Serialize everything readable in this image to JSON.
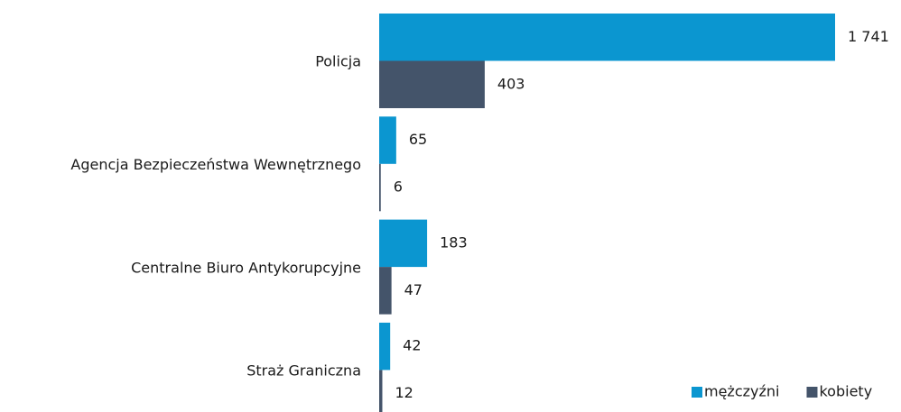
{
  "chart_data": {
    "type": "barh",
    "categories": [
      "Policja",
      "Agencja Bezpieczeństwa Wewnętrznego",
      "Centralne Biuro Antykorupcyjne",
      "Straż Graniczna"
    ],
    "series": [
      {
        "name": "mężczyźni",
        "color": "#0b96d0",
        "values": [
          1741,
          65,
          183,
          42
        ],
        "value_labels": [
          "1 741",
          "65",
          "183",
          "42"
        ]
      },
      {
        "name": "kobiety",
        "color": "#44546a",
        "values": [
          403,
          6,
          47,
          12
        ],
        "value_labels": [
          "403",
          "6",
          "47",
          "12"
        ]
      }
    ],
    "legend": "bottom-right"
  }
}
